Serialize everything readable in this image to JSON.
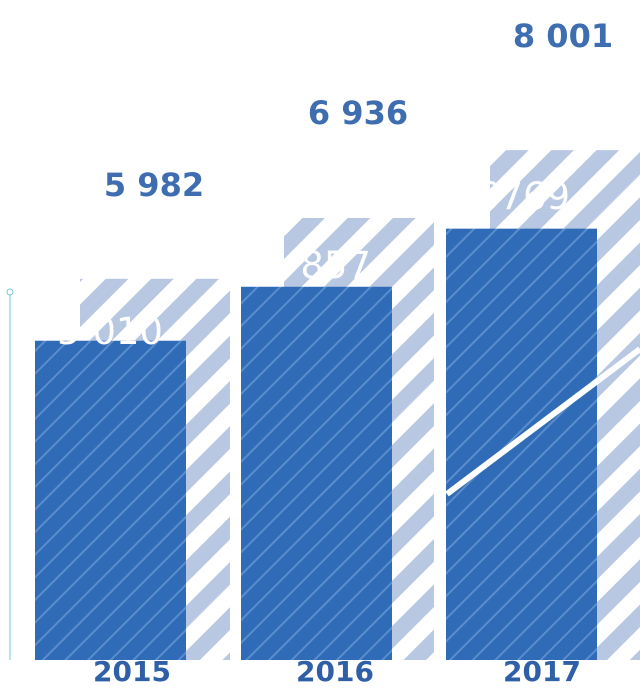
{
  "chart_data": {
    "type": "bar",
    "categories": [
      "2015",
      "2016",
      "2017"
    ],
    "series": [
      {
        "values": [
          5982,
          6936,
          8001
        ]
      },
      {
        "values": [
          5010,
          5857,
          6769
        ]
      }
    ],
    "data_labels": {
      "back": [
        "5 982",
        "6 936",
        "8 001"
      ],
      "front": [
        "5 010",
        "5 857",
        "6769"
      ]
    },
    "colors": {
      "back_fill": "#B8C7E2",
      "back_stripe": "#ffffff",
      "front_fill": "#2F6BB6",
      "front_stripe": "#5A8DCD",
      "label_back": "#3E6EB0",
      "label_front": "#ffffff",
      "category": "#2E5FA7",
      "axis": "#74C7D6"
    }
  }
}
